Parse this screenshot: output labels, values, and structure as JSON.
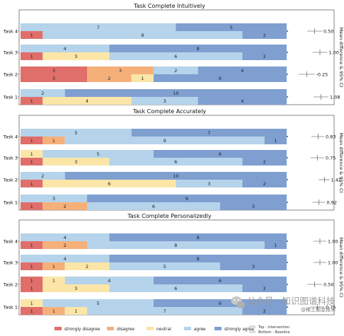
{
  "chart_data": [
    {
      "type": "bar",
      "subtype": "stacked-likert-with-forest-plot",
      "title": "Task Complete Intuitively",
      "ylabel_right": "Mean difference & 95% CI",
      "categories": [
        "Task 4",
        "Task 3",
        "Task 2",
        "Task 1"
      ],
      "rows": [
        {
          "task": "Task 4",
          "top": [
            0,
            0,
            0,
            7,
            5
          ],
          "bottom": [
            1,
            0,
            0,
            9,
            2
          ],
          "mean": "0.50",
          "mean_value": 0.5,
          "ci": [
            -0.2,
            1.2
          ]
        },
        {
          "task": "Task 3",
          "top": [
            0,
            0,
            0,
            4,
            8
          ],
          "bottom": [
            1,
            0,
            3,
            6,
            2
          ],
          "mean": "1.00",
          "mean_value": 1.0,
          "ci": [
            0.3,
            1.7
          ]
        },
        {
          "task": "Task 2",
          "top": [
            3,
            3,
            0,
            2,
            4
          ],
          "bottom": [
            3,
            2,
            1,
            0,
            6
          ],
          "mean": "-0.25",
          "mean_value": -0.25,
          "ci": [
            -1.0,
            0.5
          ]
        },
        {
          "task": "Task 1",
          "top": [
            0,
            0,
            0,
            2,
            10
          ],
          "bottom": [
            1,
            0,
            4,
            3,
            4
          ],
          "mean": "1.08",
          "mean_value": 1.08,
          "ci": [
            0.4,
            1.8
          ]
        }
      ]
    },
    {
      "type": "bar",
      "subtype": "stacked-likert-with-forest-plot",
      "title": "Task Complete Accurately",
      "ylabel_right": "Mean difference & 95% CI",
      "categories": [
        "Task 4",
        "Task 3",
        "Task 2",
        "Task 1"
      ],
      "rows": [
        {
          "task": "Task 4",
          "top": [
            0,
            0,
            0,
            5,
            7
          ],
          "bottom": [
            1,
            1,
            0,
            9,
            1
          ],
          "mean": "0.83",
          "mean_value": 0.83,
          "ci": [
            0.2,
            1.4
          ]
        },
        {
          "task": "Task 3",
          "top": [
            0,
            0,
            1,
            5,
            6
          ],
          "bottom": [
            1,
            0,
            3,
            6,
            2
          ],
          "mean": "0.75",
          "mean_value": 0.75,
          "ci": [
            0.1,
            1.4
          ]
        },
        {
          "task": "Task 2",
          "top": [
            0,
            0,
            0,
            2,
            10
          ],
          "bottom": [
            1,
            0,
            6,
            3,
            2
          ],
          "mean": "1.42",
          "mean_value": 1.42,
          "ci": [
            0.9,
            1.9
          ]
        },
        {
          "task": "Task 1",
          "top": [
            0,
            0,
            0,
            3,
            9
          ],
          "bottom": [
            1,
            2,
            0,
            6,
            3
          ],
          "mean": "0.92",
          "mean_value": 0.92,
          "ci": [
            0.3,
            1.5
          ]
        }
      ]
    },
    {
      "type": "bar",
      "subtype": "stacked-likert-with-forest-plot",
      "title": "Task Complete Personalizedly",
      "ylabel_right": "Mean difference & 95% CI",
      "categories": [
        "Task 4",
        "Task 3",
        "Task 2",
        "Task 1"
      ],
      "rows": [
        {
          "task": "Task 4",
          "top": [
            0,
            0,
            0,
            4,
            8
          ],
          "bottom": [
            1,
            2,
            0,
            8,
            1
          ],
          "mean": "1.00",
          "mean_value": 1.0,
          "ci": [
            0.4,
            1.6
          ]
        },
        {
          "task": "Task 3",
          "top": [
            0,
            0,
            0,
            4,
            8
          ],
          "bottom": [
            1,
            1,
            2,
            5,
            3
          ],
          "mean": "1.00",
          "mean_value": 1.0,
          "ci": [
            0.4,
            1.6
          ]
        },
        {
          "task": "Task 2",
          "top": [
            1,
            0,
            1,
            4,
            6
          ],
          "bottom": [
            1,
            0,
            3,
            6,
            2
          ],
          "mean": "0.50",
          "mean_value": 0.5,
          "ci": [
            -0.2,
            1.2
          ]
        },
        {
          "task": "Task 1",
          "top": [
            0,
            0,
            1,
            5,
            6
          ],
          "bottom": [
            1,
            1,
            1,
            7,
            2
          ],
          "mean": "0.75",
          "mean_value": 0.75,
          "ci": [
            0.1,
            1.4
          ]
        }
      ]
    }
  ],
  "scale_categories": [
    "strongly disagree",
    "disagree",
    "neutral",
    "agree",
    "strongly agree"
  ],
  "colors": {
    "strongly disagree": "#e06e6a",
    "disagree": "#f5b07a",
    "neutral": "#fbe6a8",
    "agree": "#b5d3ea",
    "strongly agree": "#7f9fd1"
  },
  "legend": {
    "items": [
      "strongly disagree",
      "disagree",
      "neutral",
      "agree",
      "strongly agree"
    ],
    "note_top": "Top - Intervention",
    "note_bottom": "Bottom - Baseline",
    "placement": "bottom"
  },
  "forest_axis": {
    "min": -1.8,
    "max": 2.2
  },
  "watermark": {
    "main": "公众号 · 知识图谱科技",
    "sub": "@稀土掘金技术社区"
  }
}
